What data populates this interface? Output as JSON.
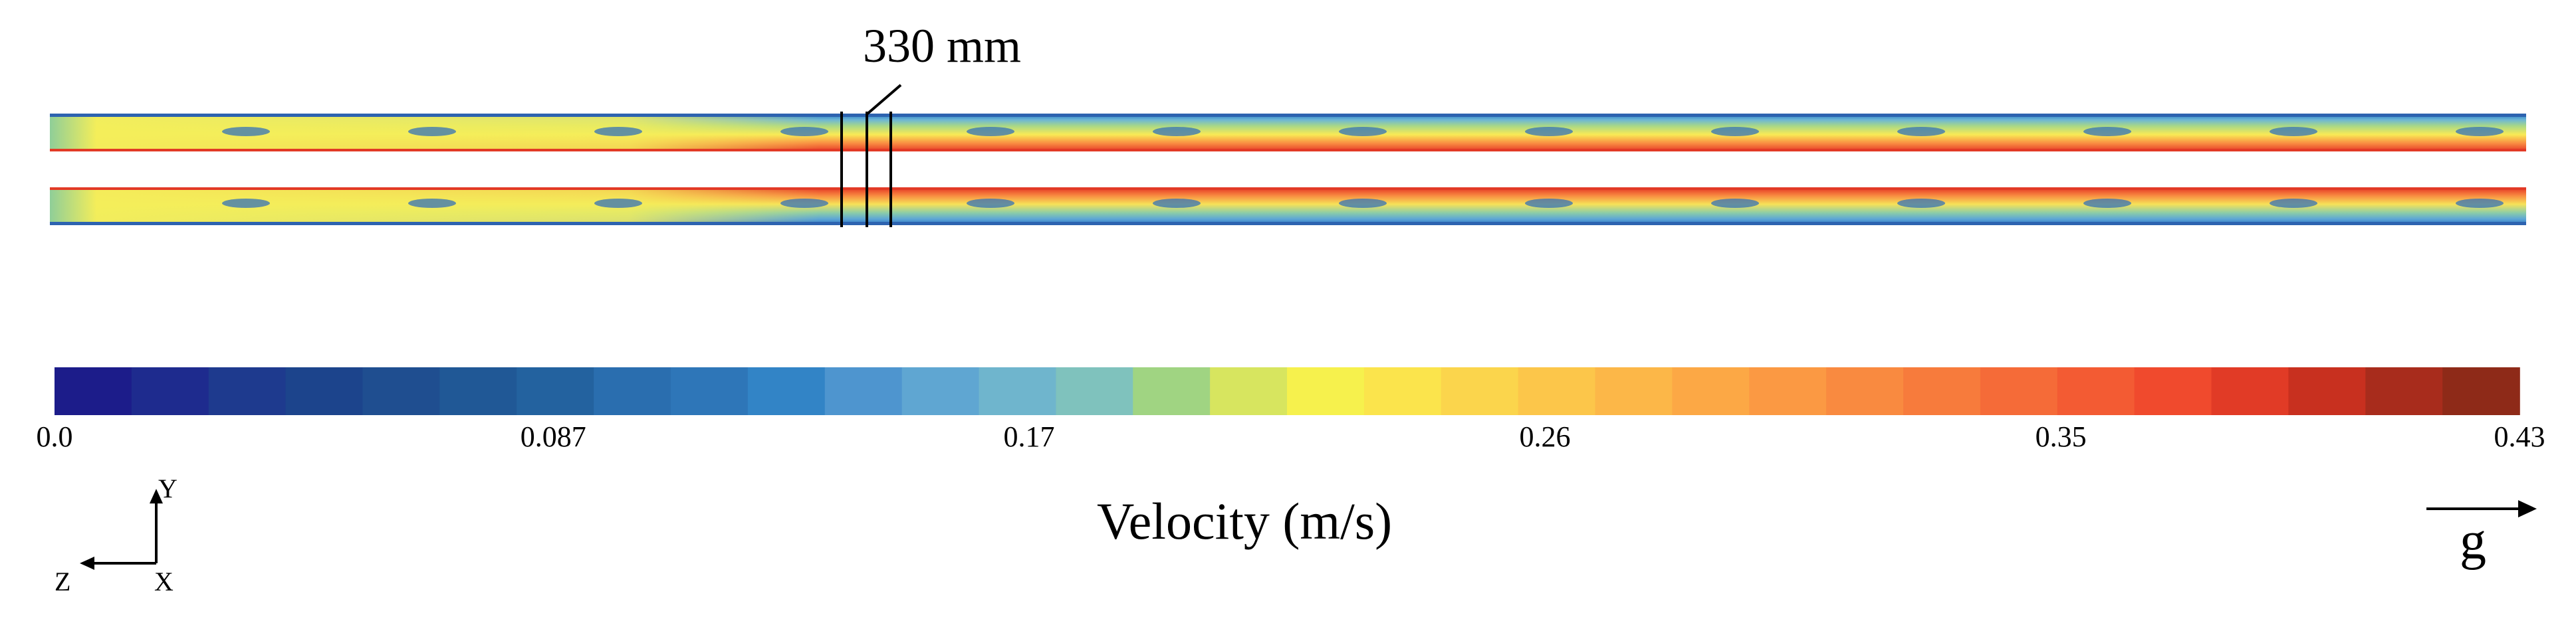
{
  "figure": {
    "annotation": "330 mm",
    "colorbar_title": "Velocity    (m/s)",
    "colorbar_ticks": [
      "0.0",
      "0.087",
      "0.17",
      "0.26",
      "0.35",
      "0.43"
    ],
    "colorbar_range": [
      0.0,
      0.43
    ],
    "colorbar_colors": [
      "#1c1c8a",
      "#1e2b8e",
      "#1e3a8e",
      "#1c448c",
      "#1f4e90",
      "#205896",
      "#23629f",
      "#2a6eaf",
      "#2e76b8",
      "#3284c6",
      "#4e95cf",
      "#5fa6d2",
      "#6fb5cd",
      "#7fc2bd",
      "#a0d482",
      "#d7e55f",
      "#f6f14d",
      "#fbe44c",
      "#fbd54c",
      "#fcc64a",
      "#fcb748",
      "#fca845",
      "#fb9943",
      "#f98a40",
      "#f77b3c",
      "#f56b38",
      "#f35b33",
      "#f04a2d",
      "#e13b26",
      "#c8301f",
      "#a82c1c",
      "#8e2a18"
    ],
    "axes": {
      "y": "Y",
      "z": "Z",
      "x": "X"
    },
    "gravity": "g"
  }
}
